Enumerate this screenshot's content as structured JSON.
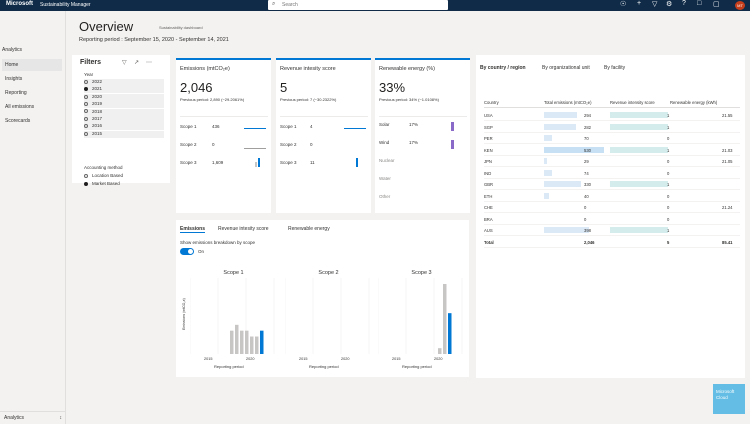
{
  "topbar": {
    "brand": "Microsoft",
    "app": "Sustainability Manager",
    "search_placeholder": "Search",
    "avatar": "MT"
  },
  "nav": {
    "section": "Analytics",
    "items": [
      {
        "label": "Home"
      },
      {
        "label": "Insights"
      },
      {
        "label": "Reporting"
      },
      {
        "label": "All emissions"
      },
      {
        "label": "Scorecards"
      }
    ],
    "footer": "Analytics",
    "footer_toggle": "↕"
  },
  "header": {
    "title": "Overview",
    "subtitle": "Sustainability dashboard",
    "period": "Reporting period : September 15, 2020 - September 14, 2021"
  },
  "filters": {
    "title": "Filters",
    "year_label": "Year",
    "years": [
      "2022",
      "2021",
      "2020",
      "2019",
      "2018",
      "2017",
      "2016",
      "2015"
    ],
    "selected_year": "2021",
    "method_label": "Accounting method",
    "methods": [
      "Location Based",
      "Market Based"
    ],
    "selected_method": "Market Based"
  },
  "cards": {
    "emissions": {
      "title": "Emissions (mtCO₂e)",
      "value": "2,046",
      "prev": "Previous period: 2,890 (−29.2061%)",
      "rows": [
        {
          "label": "Scope 1",
          "value": "436"
        },
        {
          "label": "Scope 2",
          "value": "0"
        },
        {
          "label": "Scope 3",
          "value": "1,609"
        }
      ]
    },
    "revenue": {
      "title": "Revenue intesity score",
      "value": "5",
      "prev": "Previous period: 7 (−30.2322%)",
      "rows": [
        {
          "label": "Scope 1",
          "value": "4"
        },
        {
          "label": "Scope 2",
          "value": "0"
        },
        {
          "label": "Scope 3",
          "value": "11"
        }
      ]
    },
    "renewable": {
      "title": "Renewable energy (%)",
      "value": "33%",
      "prev": "Previous period: 34% (−1.0108%)",
      "rows": [
        {
          "label": "Solar",
          "value": "17%"
        },
        {
          "label": "Wind",
          "value": "17%"
        },
        {
          "label": "Nuclear",
          "value": ""
        },
        {
          "label": "Water",
          "value": ""
        },
        {
          "label": "Other",
          "value": ""
        }
      ]
    }
  },
  "emissions_panel": {
    "tabs": [
      "Emissions",
      "Revenue intesity score",
      "Renewable energy"
    ],
    "toggle_label": "Show emissions breakdown by scope",
    "toggle_state": "On",
    "y_label": "Emissions (mtCO₂e)",
    "x_label": "Reporting period",
    "panels": [
      {
        "title": "Scope 1",
        "ticks": [
          "2015",
          "2020"
        ]
      },
      {
        "title": "Scope 2",
        "ticks": [
          "2015",
          "2020"
        ]
      },
      {
        "title": "Scope 3",
        "ticks": [
          "2015",
          "2020"
        ]
      }
    ]
  },
  "chart_data": [
    {
      "type": "bar",
      "title": "Scope 1",
      "ylabel": "Emissions (mtCO₂e)",
      "xlabel": "Reporting period",
      "series": [
        {
          "values": [
            0,
            0,
            0,
            0,
            4,
            5,
            4,
            4,
            3,
            3,
            4
          ]
        }
      ],
      "highlight_index": 10
    },
    {
      "type": "bar",
      "title": "Scope 2",
      "ylabel": "Emissions (mtCO₂e)",
      "xlabel": "Reporting period",
      "series": [
        {
          "values": [
            0,
            0,
            0,
            0,
            0,
            0,
            0,
            0,
            0,
            0,
            0
          ]
        }
      ],
      "highlight_index": 10
    },
    {
      "type": "bar",
      "title": "Scope 3",
      "ylabel": "Emissions (mtCO₂e)",
      "xlabel": "Reporting period",
      "series": [
        {
          "values": [
            0,
            0,
            0,
            0,
            0,
            0,
            0,
            0,
            1,
            12,
            7
          ]
        }
      ],
      "highlight_index": 10
    }
  ],
  "country": {
    "tabs": [
      "By country / region",
      "By organizational unit",
      "By facility"
    ],
    "headers": [
      "Country",
      "Total emissions (mtCO₂e)",
      "Revenue intensity score",
      "Renewable energy (kWh)"
    ],
    "rows": [
      {
        "c": "USA",
        "e": "294",
        "e_num": 294,
        "r": "1",
        "r_num": 1,
        "k": "21.55"
      },
      {
        "c": "SGP",
        "e": "282",
        "e_num": 282,
        "r": "1",
        "r_num": 1,
        "k": ""
      },
      {
        "c": "PER",
        "e": "70",
        "e_num": 70,
        "r": "0",
        "r_num": 0,
        "k": ""
      },
      {
        "c": "KEN",
        "e": "530",
        "e_num": 530,
        "r": "1",
        "r_num": 1,
        "k": "21.03"
      },
      {
        "c": "JPN",
        "e": "29",
        "e_num": 29,
        "r": "0",
        "r_num": 0,
        "k": "21.05"
      },
      {
        "c": "IND",
        "e": "74",
        "e_num": 74,
        "r": "0",
        "r_num": 0,
        "k": ""
      },
      {
        "c": "GBR",
        "e": "330",
        "e_num": 330,
        "r": "1",
        "r_num": 1,
        "k": ""
      },
      {
        "c": "ETH",
        "e": "40",
        "e_num": 40,
        "r": "0",
        "r_num": 0,
        "k": ""
      },
      {
        "c": "CHE",
        "e": "0",
        "e_num": 0,
        "r": "0",
        "r_num": 0,
        "k": "21.24"
      },
      {
        "c": "BRA",
        "e": "0",
        "e_num": 0,
        "r": "0",
        "r_num": 0,
        "k": ""
      },
      {
        "c": "AUS",
        "e": "398",
        "e_num": 398,
        "r": "1",
        "r_num": 1,
        "k": ""
      }
    ],
    "total": {
      "c": "Total",
      "e": "2,046",
      "r": "5",
      "k": "85.41"
    }
  },
  "badge": {
    "line1": "Microsoft",
    "line2": "Cloud"
  },
  "colors": {
    "accent": "#0078d4",
    "topbar": "#0f2b48",
    "gray_bar": "#c8c6c4",
    "teal_bar": "#cfe9e9",
    "blue_bar": "#c7e0f4"
  }
}
